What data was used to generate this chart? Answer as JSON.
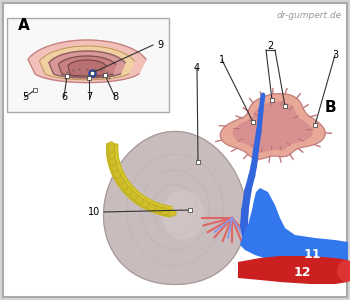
{
  "bg_color": "#d4d4d4",
  "panel_bg": "#ffffff",
  "border_color": "#aaaaaa",
  "watermark": "dr-gumpert.de",
  "watermark_color": "#999999",
  "label_A": "A",
  "label_B": "B",
  "kidney_fill": "#c8bcbc",
  "kidney_inner": "#bfb0b0",
  "kidney_pelvis": "#d8cccc",
  "adrenal_outer": "#e8a0a0",
  "adrenal_mid": "#d98888",
  "adrenal_inner": "#c87878",
  "yellow_fat": "#d8c830",
  "yellow_fat_dark": "#c0b020",
  "blue_vein": "#3366dd",
  "blue_blob": "#3377ee",
  "red_artery": "#cc2020",
  "red_small": "#dd6666",
  "blue_small": "#8899ee",
  "ann_color": "#333333",
  "cs_outer1": "#f0b8b0",
  "cs_outer2": "#e8c0a0",
  "cs_mid": "#d49090",
  "cs_inner": "#c07878",
  "cs_medulla": "#b86868",
  "cs_blue": "#2244cc"
}
